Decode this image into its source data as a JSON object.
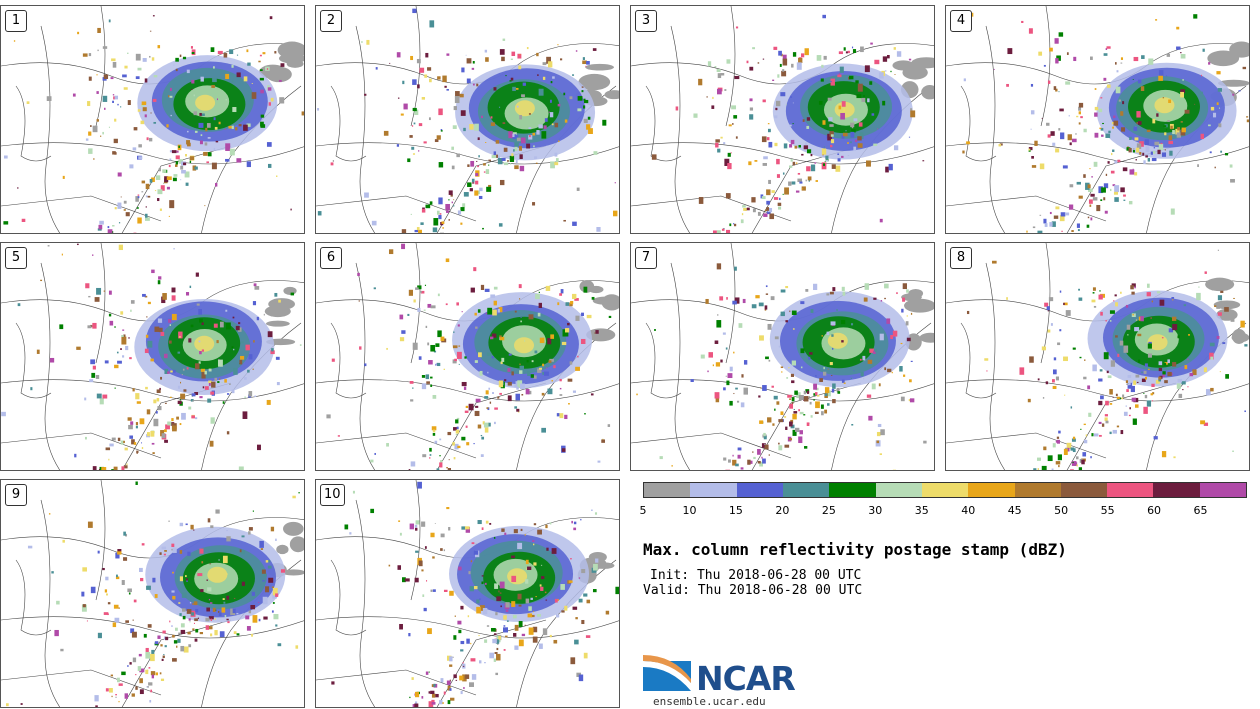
{
  "panels": [
    {
      "label": "1"
    },
    {
      "label": "2"
    },
    {
      "label": "3"
    },
    {
      "label": "4"
    },
    {
      "label": "5"
    },
    {
      "label": "6"
    },
    {
      "label": "7"
    },
    {
      "label": "8"
    },
    {
      "label": "9"
    },
    {
      "label": "10"
    }
  ],
  "colorbar": {
    "ticks": [
      "5",
      "10",
      "15",
      "20",
      "25",
      "30",
      "35",
      "40",
      "45",
      "50",
      "55",
      "60",
      "65"
    ],
    "colors": [
      "#a0a0a0",
      "#b4bde9",
      "#5561d2",
      "#4a8f96",
      "#008000",
      "#b6dcb6",
      "#eedc6a",
      "#e8a61a",
      "#b07a2e",
      "#8b5a3c",
      "#ec5580",
      "#6c1d3e",
      "#b04aa8"
    ]
  },
  "title": "Max. column reflectivity postage stamp (dBZ)",
  "init": "Init: Thu 2018-06-28 00 UTC",
  "valid": "Valid: Thu 2018-06-28 00 UTC",
  "logo": {
    "text": "NCAR",
    "url_text": "ensemble.ucar.edu",
    "color": "#1f4e8c"
  }
}
